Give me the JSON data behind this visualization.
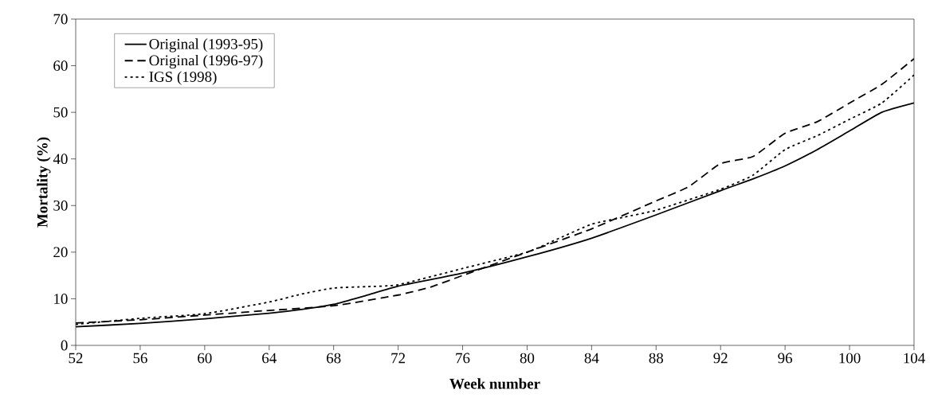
{
  "chart_data": {
    "type": "line",
    "xlabel": "Week number",
    "ylabel": "Mortality (%)",
    "xlim": [
      52,
      104
    ],
    "ylim": [
      0,
      70
    ],
    "xticks": [
      52,
      56,
      60,
      64,
      68,
      72,
      76,
      80,
      84,
      88,
      92,
      96,
      100,
      104
    ],
    "yticks": [
      0,
      10,
      20,
      30,
      40,
      50,
      60,
      70
    ],
    "grid": false,
    "legend": "top left",
    "marker": "none",
    "series": [
      {
        "name": "Original (1993-95)",
        "color": "#000000",
        "line_style": "solid",
        "x": [
          52,
          56,
          60,
          64,
          66,
          68,
          70,
          72,
          76,
          80,
          84,
          88,
          92,
          94,
          96,
          98,
          100,
          102,
          104
        ],
        "values": [
          4,
          4.7,
          5.7,
          6.9,
          7.7,
          8.8,
          10.7,
          12.7,
          15.5,
          19,
          23,
          28,
          33.2,
          35.7,
          38.5,
          42,
          46,
          50,
          52
        ]
      },
      {
        "name": "Original (1996-97)",
        "color": "#000000",
        "line_style": "dashed",
        "x": [
          52,
          56,
          60,
          64,
          68,
          72,
          74,
          76,
          80,
          84,
          88,
          90,
          92,
          94,
          96,
          98,
          100,
          102,
          104
        ],
        "values": [
          4.8,
          5.5,
          6.5,
          7.5,
          8.5,
          10.8,
          12.5,
          15,
          20,
          25,
          31,
          34,
          39,
          40.5,
          45.5,
          48,
          52,
          56,
          61.5
        ]
      },
      {
        "name": "IGS (1998)",
        "color": "#000000",
        "line_style": "dotted",
        "x": [
          52,
          56,
          60,
          64,
          66,
          68,
          70,
          72,
          76,
          80,
          82,
          84,
          86,
          88,
          92,
          94,
          96,
          98,
          100,
          102,
          104
        ],
        "values": [
          4.5,
          5.8,
          6.8,
          9.3,
          11,
          12.3,
          12.6,
          13,
          16.5,
          20,
          23,
          26,
          27.5,
          29,
          33.5,
          36.5,
          42,
          45,
          48.5,
          52,
          58
        ]
      }
    ]
  }
}
